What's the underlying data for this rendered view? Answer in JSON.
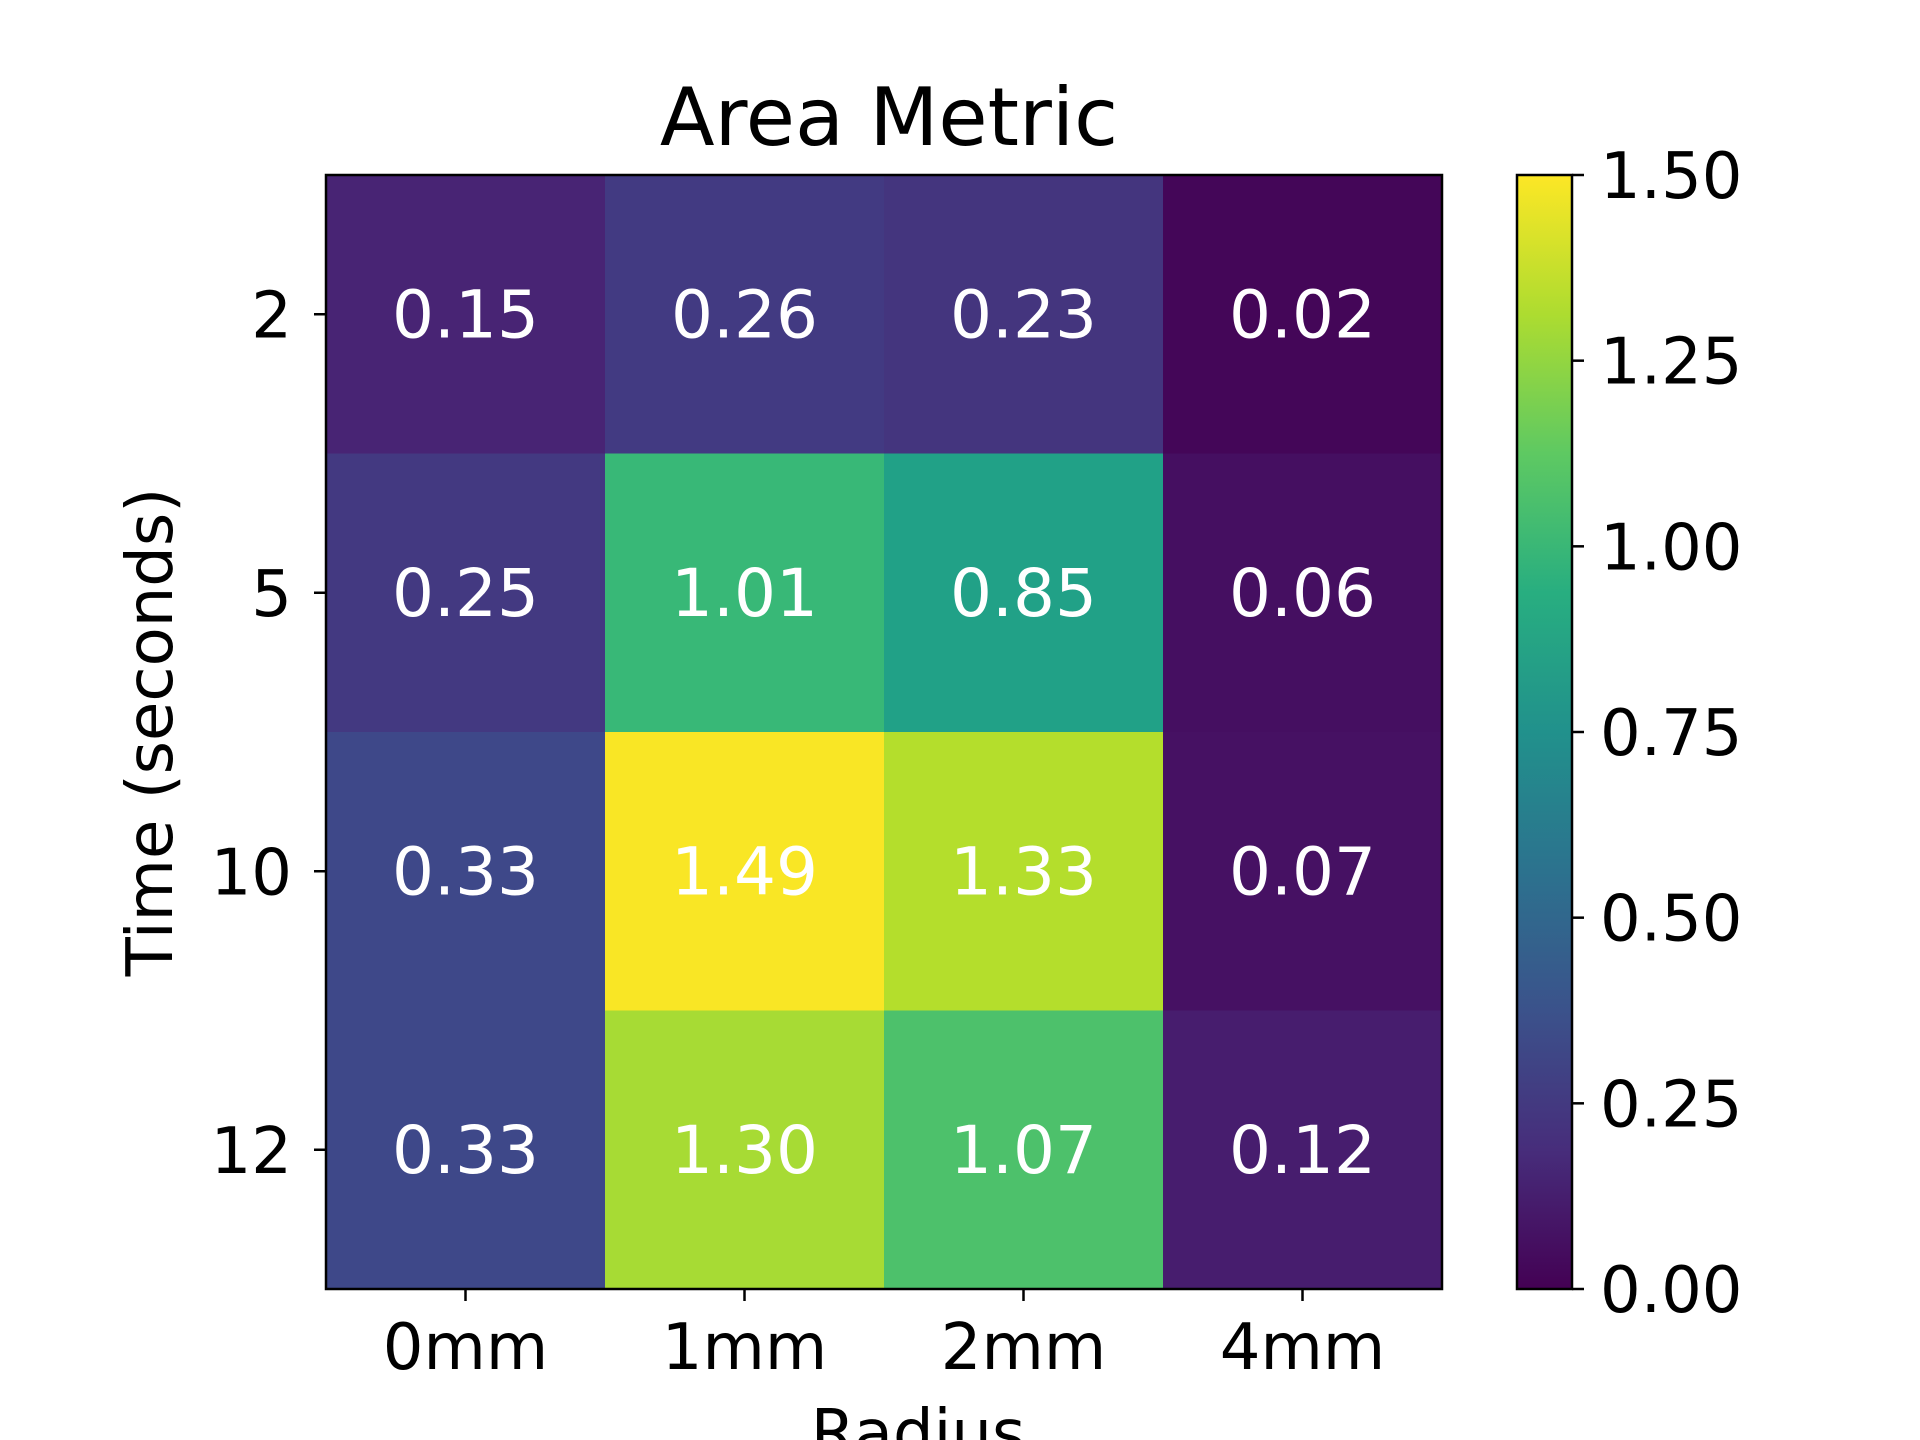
{
  "chart_data": {
    "type": "heatmap",
    "title": "Area Metric",
    "xlabel": "Radius",
    "ylabel": "Time (seconds)",
    "x_categories": [
      "0mm",
      "1mm",
      "2mm",
      "4mm"
    ],
    "y_categories": [
      "2",
      "5",
      "10",
      "12"
    ],
    "values": [
      [
        0.15,
        0.26,
        0.23,
        0.02
      ],
      [
        0.25,
        1.01,
        0.85,
        0.06
      ],
      [
        0.33,
        1.49,
        1.33,
        0.07
      ],
      [
        0.33,
        1.3,
        1.07,
        0.12
      ]
    ],
    "cell_labels": [
      [
        "0.15",
        "0.26",
        "0.23",
        "0.02"
      ],
      [
        "0.25",
        "1.01",
        "0.85",
        "0.06"
      ],
      [
        "0.33",
        "1.49",
        "1.33",
        "0.07"
      ],
      [
        "0.33",
        "1.30",
        "1.07",
        "0.12"
      ]
    ],
    "colormap": "viridis",
    "colorbar": {
      "range": [
        0,
        1.5
      ],
      "ticks": [
        "0.00",
        "0.25",
        "0.50",
        "0.75",
        "1.00",
        "1.25",
        "1.50"
      ]
    }
  }
}
